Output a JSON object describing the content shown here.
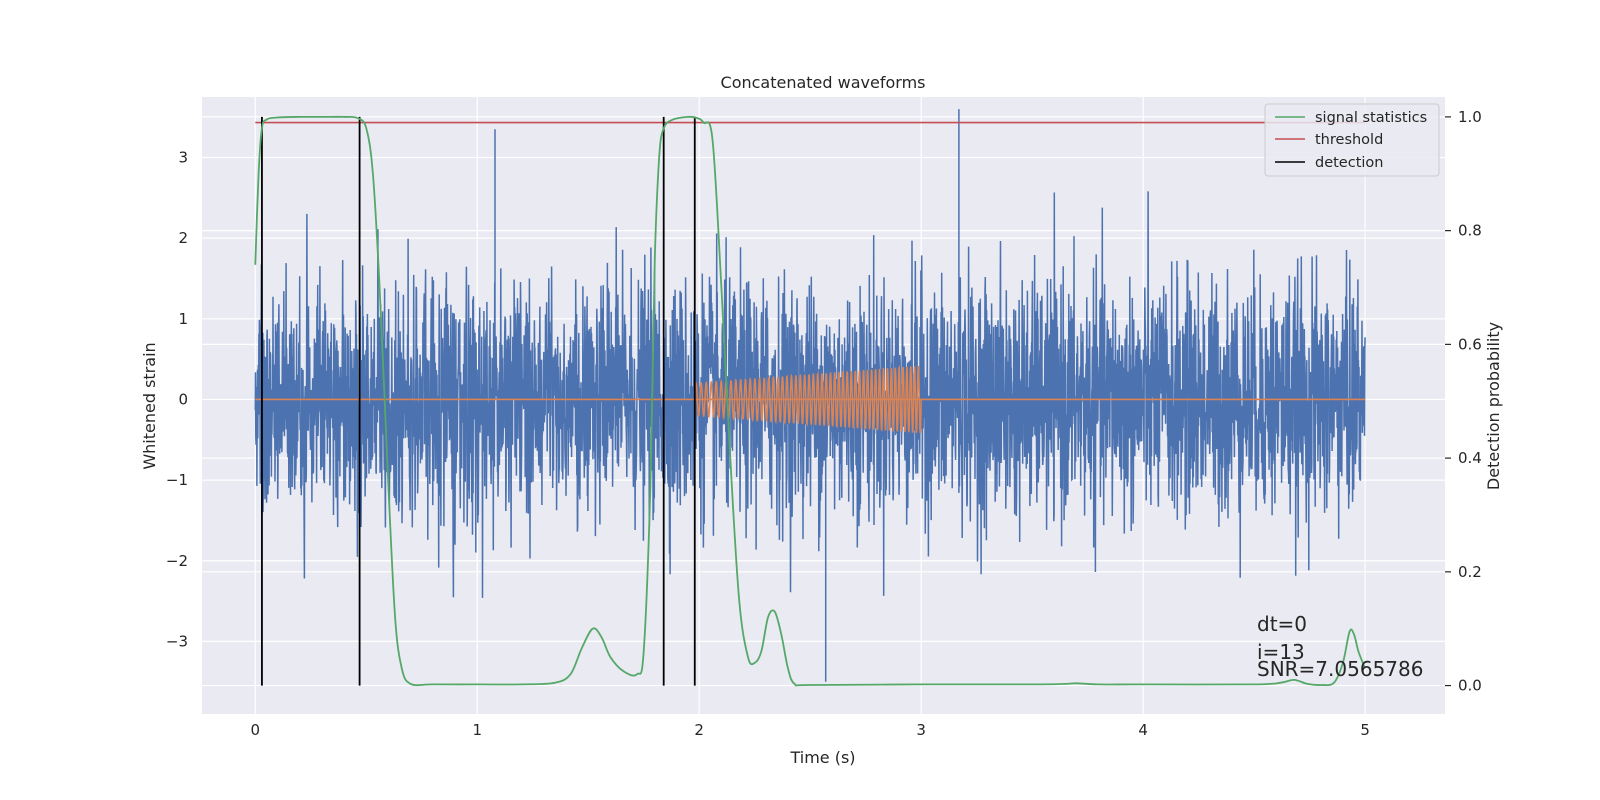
{
  "chart_data": {
    "type": "line",
    "title": "Concatenated waveforms",
    "xlabel": "Time (s)",
    "ylabel": "Whitened strain",
    "y2label": "Detection probability",
    "xlim": [
      -0.24,
      5.36
    ],
    "ylim": [
      -3.9,
      3.75
    ],
    "y2lim": [
      -0.05,
      1.035
    ],
    "xticks": [
      0,
      1,
      2,
      3,
      4,
      5
    ],
    "yticks": [
      -3,
      -2,
      -1,
      0,
      1,
      2,
      3
    ],
    "y2ticks": [
      0.0,
      0.2,
      0.4,
      0.6,
      0.8,
      1.0
    ],
    "xtick_labels": [
      "0",
      "1",
      "2",
      "3",
      "4",
      "5"
    ],
    "ytick_labels": [
      "−3",
      "−2",
      "−1",
      "0",
      "1",
      "2",
      "3"
    ],
    "y2tick_labels": [
      "0.0",
      "0.2",
      "0.4",
      "0.6",
      "0.8",
      "1.0"
    ],
    "grid": true,
    "legend_position": "top-right",
    "colors": {
      "background": "#eaeaf2",
      "strain": "#4c72b0",
      "injected_waveform": "#dd8452",
      "signal_statistics": "#55a868",
      "threshold": "#c44e52",
      "detection": "#000000"
    },
    "strain": {
      "x_range": [
        0,
        5
      ],
      "approx_std": 0.72,
      "approx_range": [
        -3.6,
        3.6
      ],
      "notable_peaks": [
        {
          "x": 3.17,
          "y": 3.6
        },
        {
          "x": 2.57,
          "y": -3.5
        },
        {
          "x": 1.08,
          "y": 3.35
        }
      ]
    },
    "injected_waveform": {
      "x_range": [
        1.98,
        3.0
      ],
      "amplitude_start": 0.2,
      "amplitude_end": 0.42,
      "zero_line_x_range": [
        0,
        5
      ]
    },
    "series": [
      {
        "name": "signal statistics",
        "axis": "right",
        "x": [
          0,
          0.015,
          0.03,
          0.05,
          0.1,
          0.2,
          0.3,
          0.4,
          0.46,
          0.5,
          0.53,
          0.56,
          0.6,
          0.63,
          0.66,
          0.7,
          0.8,
          1.0,
          1.2,
          1.35,
          1.42,
          1.47,
          1.52,
          1.56,
          1.6,
          1.66,
          1.72,
          1.75,
          1.78,
          1.8,
          1.82,
          1.84,
          1.88,
          1.95,
          1.99,
          2.02,
          2.06,
          2.1,
          2.14,
          2.18,
          2.22,
          2.25,
          2.28,
          2.31,
          2.34,
          2.37,
          2.4,
          2.43,
          2.5,
          3.0,
          3.5,
          3.65,
          3.7,
          3.8,
          4.0,
          4.5,
          4.62,
          4.68,
          4.74,
          4.8,
          4.86,
          4.9,
          4.93,
          4.95,
          4.97,
          5.0
        ],
        "values": [
          0.74,
          0.9,
          0.98,
          0.995,
          0.999,
          1.0,
          1.0,
          1.0,
          0.998,
          0.98,
          0.9,
          0.7,
          0.35,
          0.12,
          0.03,
          0.003,
          0.002,
          0.002,
          0.002,
          0.005,
          0.02,
          0.065,
          0.1,
          0.085,
          0.05,
          0.025,
          0.02,
          0.06,
          0.35,
          0.75,
          0.93,
          0.98,
          0.995,
          1.0,
          0.998,
          0.99,
          0.96,
          0.7,
          0.4,
          0.15,
          0.05,
          0.04,
          0.06,
          0.12,
          0.13,
          0.09,
          0.03,
          0.003,
          0.001,
          0.002,
          0.002,
          0.003,
          0.004,
          0.002,
          0.002,
          0.002,
          0.005,
          0.01,
          0.003,
          0.001,
          0.005,
          0.04,
          0.095,
          0.09,
          0.06,
          0.03
        ]
      },
      {
        "name": "threshold",
        "axis": "right",
        "x": [
          0,
          5
        ],
        "values": [
          0.99,
          0.99
        ]
      },
      {
        "name": "detection",
        "axis": "right",
        "x_lines": [
          0.03,
          0.47,
          1.84,
          1.98
        ],
        "y_range": [
          0.0,
          1.0
        ]
      }
    ],
    "annotations": [
      "dt=0",
      "i=13",
      "SNR=7.0565786"
    ]
  }
}
